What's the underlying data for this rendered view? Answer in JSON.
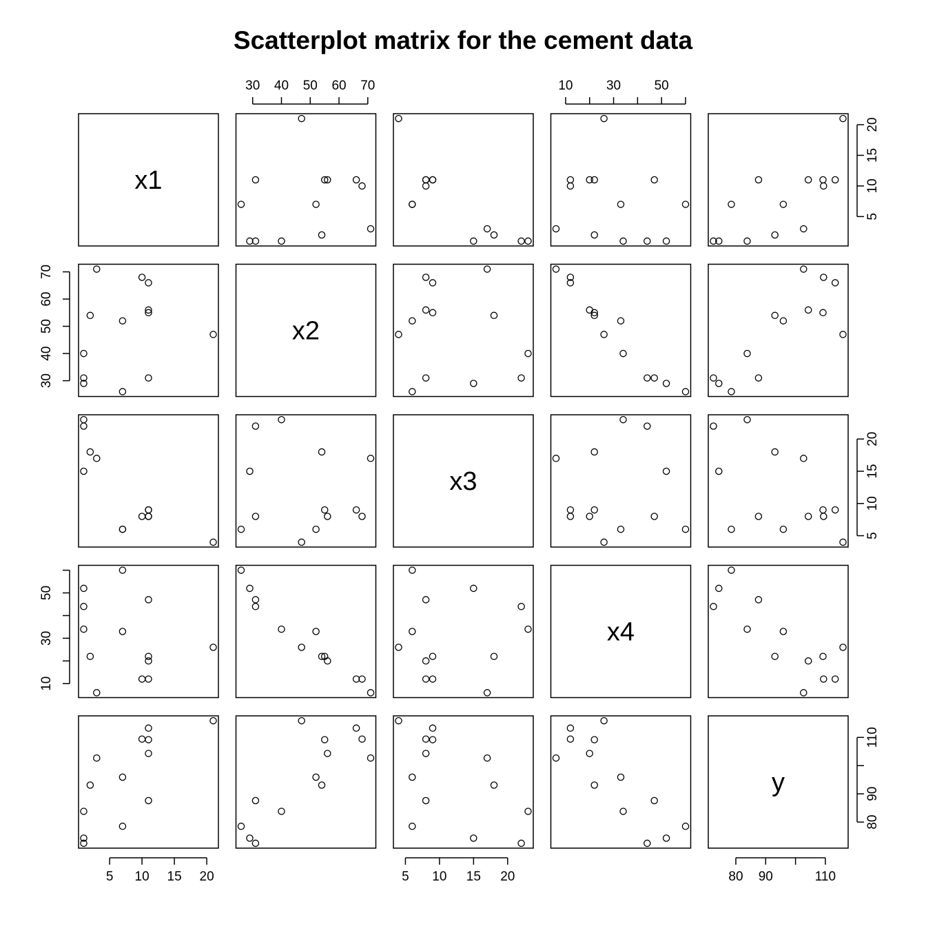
{
  "chart_data": {
    "type": "scatter",
    "title": "Scatterplot matrix for the cement data",
    "variables": [
      "x1",
      "x2",
      "x3",
      "x4",
      "y"
    ],
    "data": {
      "x1": [
        7,
        1,
        11,
        11,
        7,
        11,
        3,
        1,
        2,
        21,
        1,
        11,
        10
      ],
      "x2": [
        26,
        29,
        56,
        31,
        52,
        55,
        71,
        31,
        54,
        47,
        40,
        66,
        68
      ],
      "x3": [
        6,
        15,
        8,
        8,
        6,
        9,
        17,
        22,
        18,
        4,
        23,
        9,
        8
      ],
      "x4": [
        60,
        52,
        20,
        47,
        33,
        22,
        6,
        44,
        22,
        26,
        34,
        12,
        12
      ],
      "y": [
        78.5,
        74.3,
        104.3,
        87.6,
        95.9,
        109.2,
        102.7,
        72.5,
        93.1,
        115.9,
        83.8,
        113.3,
        109.4
      ]
    },
    "axis_ticks": {
      "x1": {
        "ticks": [
          5,
          10,
          15,
          20
        ],
        "labels": [
          "5",
          "10",
          "15",
          "20"
        ]
      },
      "x2": {
        "ticks": [
          30,
          40,
          50,
          60,
          70
        ],
        "labels": [
          "30",
          "40",
          "50",
          "60",
          "70"
        ]
      },
      "x3": {
        "ticks": [
          5,
          10,
          15,
          20
        ],
        "labels": [
          "5",
          "10",
          "15",
          "20"
        ]
      },
      "x4": {
        "ticks": [
          10,
          20,
          30,
          40,
          50,
          60
        ],
        "labels": [
          "10",
          "",
          "30",
          "",
          "50",
          ""
        ]
      },
      "y": {
        "ticks": [
          80,
          90,
          100,
          110
        ],
        "labels": [
          "80",
          "90",
          "",
          "110"
        ]
      }
    },
    "axis_ranges": {
      "x1": [
        1,
        21
      ],
      "x2": [
        26,
        71
      ],
      "x3": [
        4,
        23
      ],
      "x4": [
        6,
        60
      ],
      "y": [
        72.5,
        115.9
      ]
    },
    "grid": false,
    "point_symbol": "open-circle",
    "colors": {
      "points": "#000000",
      "frame": "#000000",
      "background": "#ffffff"
    }
  }
}
